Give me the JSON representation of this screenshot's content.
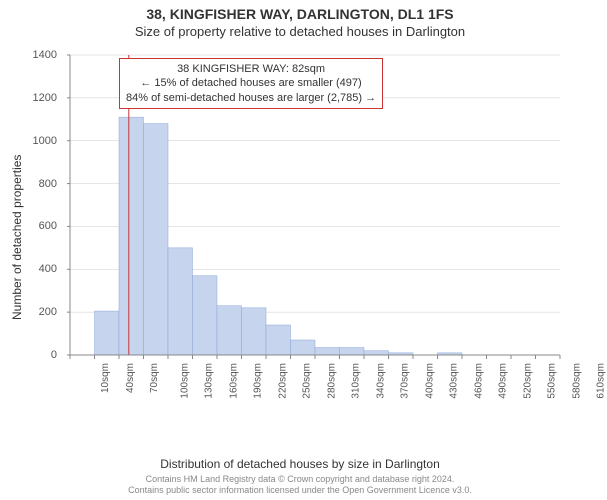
{
  "title": "38, KINGFISHER WAY, DARLINGTON, DL1 1FS",
  "subtitle": "Size of property relative to detached houses in Darlington",
  "chart": {
    "type": "histogram",
    "ylabel": "Number of detached properties",
    "xlabel": "Distribution of detached houses by size in Darlington",
    "ylim": [
      0,
      1400
    ],
    "ytick_step": 200,
    "yticks": [
      0,
      200,
      400,
      600,
      800,
      1000,
      1200,
      1400
    ],
    "xticks": [
      "10sqm",
      "40sqm",
      "70sqm",
      "100sqm",
      "130sqm",
      "160sqm",
      "190sqm",
      "220sqm",
      "250sqm",
      "280sqm",
      "310sqm",
      "340sqm",
      "370sqm",
      "400sqm",
      "430sqm",
      "460sqm",
      "490sqm",
      "520sqm",
      "550sqm",
      "580sqm",
      "610sqm"
    ],
    "bar_centers_sqm": [
      25,
      55,
      85,
      115,
      145,
      175,
      205,
      235,
      265,
      295,
      325,
      355,
      385,
      415,
      445,
      475,
      505,
      535,
      565,
      595
    ],
    "values": [
      0,
      205,
      1110,
      1080,
      500,
      370,
      230,
      220,
      140,
      70,
      35,
      35,
      20,
      10,
      0,
      10,
      0,
      0,
      0,
      0
    ],
    "bar_fill": "#c6d4ee",
    "bar_stroke": "#8ea6d6",
    "background_color": "#ffffff",
    "grid_color": "#cccccc",
    "axis_color": "#888888",
    "marker_color": "#cc3333",
    "marker_value_sqm": 82,
    "title_fontsize": 14,
    "subtitle_fontsize": 13,
    "label_fontsize": 12,
    "tick_fontsize": 11,
    "xtick_fontsize": 10
  },
  "infobox": {
    "line1": "38 KINGFISHER WAY: 82sqm",
    "line2": "← 15% of detached houses are smaller (497)",
    "line3": "84% of semi-detached houses are larger (2,785) →",
    "border_color": "#cc3333"
  },
  "footer": {
    "line1": "Contains HM Land Registry data © Crown copyright and database right 2024.",
    "line2": "Contains public sector information licensed under the Open Government Licence v3.0."
  }
}
